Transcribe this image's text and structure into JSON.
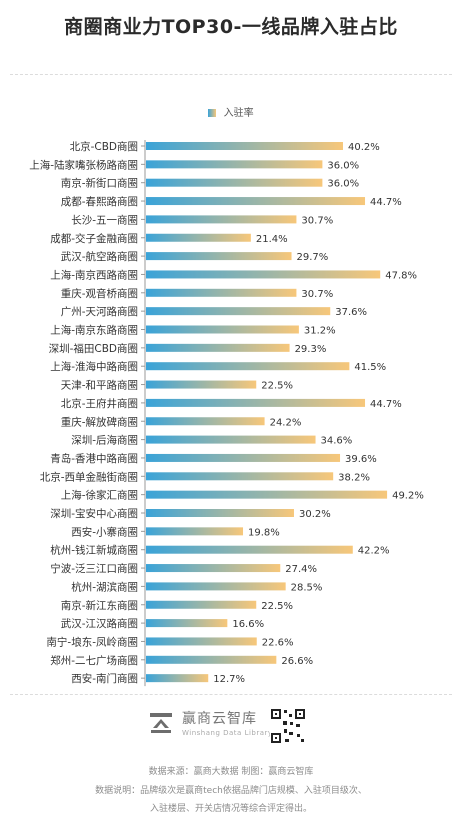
{
  "title": "商圈商业力TOP30-一线品牌入驻占比",
  "legend": {
    "label": "入驻率"
  },
  "colors": {
    "bar_start": "#3aa3d8",
    "bar_end": "#f7c77a",
    "axis": "#9a9a9a"
  },
  "chart_data": {
    "type": "bar",
    "orientation": "horizontal",
    "categories": [
      "北京-CBD商圈",
      "上海-陆家嘴张杨路商圈",
      "南京-新街口商圈",
      "成都-春熙路商圈",
      "长沙-五一商圈",
      "成都-交子金融商圈",
      "武汉-航空路商圈",
      "上海-南京西路商圈",
      "重庆-观音桥商圈",
      "广州-天河路商圈",
      "上海-南京东路商圈",
      "深圳-福田CBD商圈",
      "上海-淮海中路商圈",
      "天津-和平路商圈",
      "北京-王府井商圈",
      "重庆-解放碑商圈",
      "深圳-后海商圈",
      "青岛-香港中路商圈",
      "北京-西单金融街商圈",
      "上海-徐家汇商圈",
      "深圳-宝安中心商圈",
      "西安-小寨商圈",
      "杭州-钱江新城商圈",
      "宁波-泛三江口商圈",
      "杭州-湖滨商圈",
      "南京-新江东商圈",
      "武汉-江汉路商圈",
      "南宁-埌东-凤岭商圈",
      "郑州-二七广场商圈",
      "西安-南门商圈"
    ],
    "values": [
      40.2,
      36.0,
      36.0,
      44.7,
      30.7,
      21.4,
      29.7,
      47.8,
      30.7,
      37.6,
      31.2,
      29.3,
      41.5,
      22.5,
      44.7,
      24.2,
      34.6,
      39.6,
      38.2,
      49.2,
      30.2,
      19.8,
      42.2,
      27.4,
      28.5,
      22.5,
      16.6,
      22.6,
      26.6,
      12.7
    ],
    "value_labels": [
      "40.2%",
      "36.0%",
      "36.0%",
      "44.7%",
      "30.7%",
      "21.4%",
      "29.7%",
      "47.8%",
      "30.7%",
      "37.6%",
      "31.2%",
      "29.3%",
      "41.5%",
      "22.5%",
      "44.7%",
      "24.2%",
      "34.6%",
      "39.6%",
      "38.2%",
      "49.2%",
      "30.2%",
      "19.8%",
      "42.2%",
      "27.4%",
      "28.5%",
      "22.5%",
      "16.6%",
      "22.6%",
      "26.6%",
      "12.7%"
    ],
    "xlim": [
      0,
      50
    ],
    "grid": false,
    "legend_position": "top-center"
  },
  "footer": {
    "logo_text": "赢商云智库",
    "logo_subtext": "Winshang Data Library",
    "source": "数据来源：赢商大数据  制图：赢商云智库",
    "note_line1": "数据说明：品牌级次是赢商tech依据品牌门店规模、入驻项目级次、",
    "note_line2": "入驻楼层、开关店情况等综合评定得出。"
  }
}
